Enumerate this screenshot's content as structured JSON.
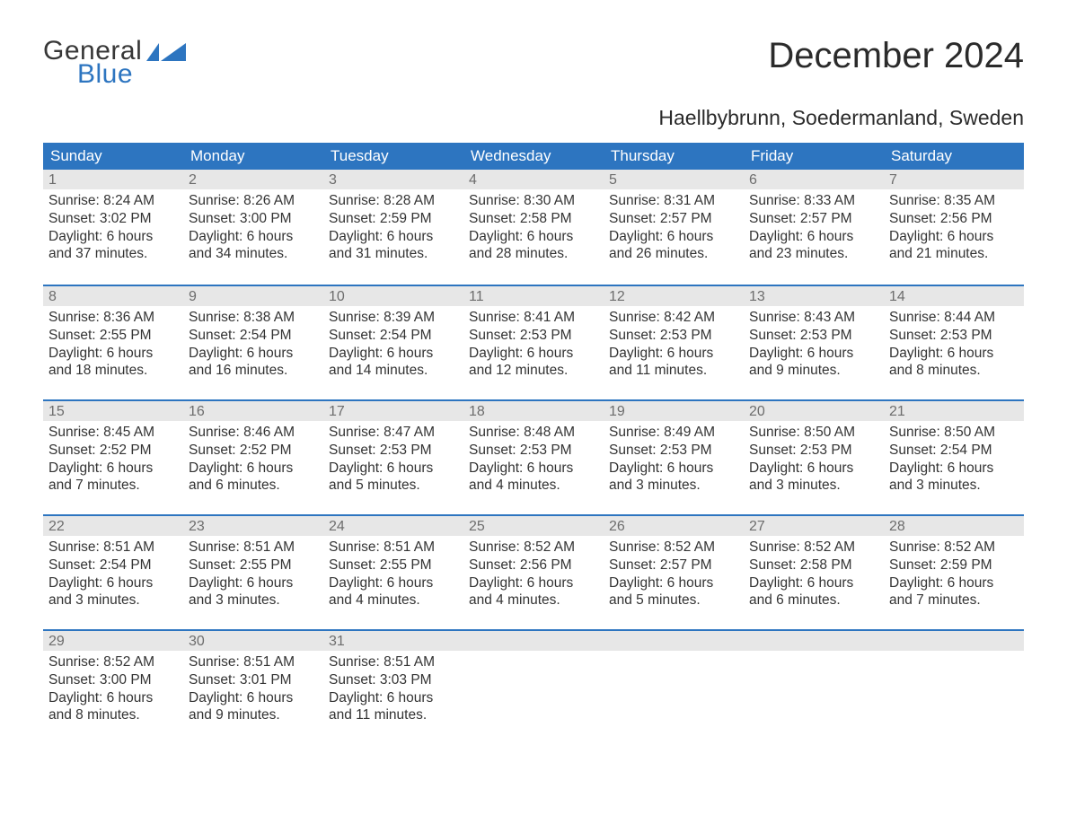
{
  "logo": {
    "general": "General",
    "blue": "Blue"
  },
  "title": "December 2024",
  "location": "Haellbybrunn, Soedermanland, Sweden",
  "colors": {
    "accent": "#2d75c0",
    "header_text": "#ffffff",
    "daynum_bg": "#e7e7e7",
    "daynum_fg": "#6d6d6d",
    "body_text": "#333333",
    "page_bg": "#ffffff",
    "title_fg": "#2b2b2b",
    "logo_dark": "#373737"
  },
  "columns": [
    "Sunday",
    "Monday",
    "Tuesday",
    "Wednesday",
    "Thursday",
    "Friday",
    "Saturday"
  ],
  "weeks": [
    [
      {
        "n": "1",
        "sr": "Sunrise: 8:24 AM",
        "ss": "Sunset: 3:02 PM",
        "d1": "Daylight: 6 hours",
        "d2": "and 37 minutes."
      },
      {
        "n": "2",
        "sr": "Sunrise: 8:26 AM",
        "ss": "Sunset: 3:00 PM",
        "d1": "Daylight: 6 hours",
        "d2": "and 34 minutes."
      },
      {
        "n": "3",
        "sr": "Sunrise: 8:28 AM",
        "ss": "Sunset: 2:59 PM",
        "d1": "Daylight: 6 hours",
        "d2": "and 31 minutes."
      },
      {
        "n": "4",
        "sr": "Sunrise: 8:30 AM",
        "ss": "Sunset: 2:58 PM",
        "d1": "Daylight: 6 hours",
        "d2": "and 28 minutes."
      },
      {
        "n": "5",
        "sr": "Sunrise: 8:31 AM",
        "ss": "Sunset: 2:57 PM",
        "d1": "Daylight: 6 hours",
        "d2": "and 26 minutes."
      },
      {
        "n": "6",
        "sr": "Sunrise: 8:33 AM",
        "ss": "Sunset: 2:57 PM",
        "d1": "Daylight: 6 hours",
        "d2": "and 23 minutes."
      },
      {
        "n": "7",
        "sr": "Sunrise: 8:35 AM",
        "ss": "Sunset: 2:56 PM",
        "d1": "Daylight: 6 hours",
        "d2": "and 21 minutes."
      }
    ],
    [
      {
        "n": "8",
        "sr": "Sunrise: 8:36 AM",
        "ss": "Sunset: 2:55 PM",
        "d1": "Daylight: 6 hours",
        "d2": "and 18 minutes."
      },
      {
        "n": "9",
        "sr": "Sunrise: 8:38 AM",
        "ss": "Sunset: 2:54 PM",
        "d1": "Daylight: 6 hours",
        "d2": "and 16 minutes."
      },
      {
        "n": "10",
        "sr": "Sunrise: 8:39 AM",
        "ss": "Sunset: 2:54 PM",
        "d1": "Daylight: 6 hours",
        "d2": "and 14 minutes."
      },
      {
        "n": "11",
        "sr": "Sunrise: 8:41 AM",
        "ss": "Sunset: 2:53 PM",
        "d1": "Daylight: 6 hours",
        "d2": "and 12 minutes."
      },
      {
        "n": "12",
        "sr": "Sunrise: 8:42 AM",
        "ss": "Sunset: 2:53 PM",
        "d1": "Daylight: 6 hours",
        "d2": "and 11 minutes."
      },
      {
        "n": "13",
        "sr": "Sunrise: 8:43 AM",
        "ss": "Sunset: 2:53 PM",
        "d1": "Daylight: 6 hours",
        "d2": "and 9 minutes."
      },
      {
        "n": "14",
        "sr": "Sunrise: 8:44 AM",
        "ss": "Sunset: 2:53 PM",
        "d1": "Daylight: 6 hours",
        "d2": "and 8 minutes."
      }
    ],
    [
      {
        "n": "15",
        "sr": "Sunrise: 8:45 AM",
        "ss": "Sunset: 2:52 PM",
        "d1": "Daylight: 6 hours",
        "d2": "and 7 minutes."
      },
      {
        "n": "16",
        "sr": "Sunrise: 8:46 AM",
        "ss": "Sunset: 2:52 PM",
        "d1": "Daylight: 6 hours",
        "d2": "and 6 minutes."
      },
      {
        "n": "17",
        "sr": "Sunrise: 8:47 AM",
        "ss": "Sunset: 2:53 PM",
        "d1": "Daylight: 6 hours",
        "d2": "and 5 minutes."
      },
      {
        "n": "18",
        "sr": "Sunrise: 8:48 AM",
        "ss": "Sunset: 2:53 PM",
        "d1": "Daylight: 6 hours",
        "d2": "and 4 minutes."
      },
      {
        "n": "19",
        "sr": "Sunrise: 8:49 AM",
        "ss": "Sunset: 2:53 PM",
        "d1": "Daylight: 6 hours",
        "d2": "and 3 minutes."
      },
      {
        "n": "20",
        "sr": "Sunrise: 8:50 AM",
        "ss": "Sunset: 2:53 PM",
        "d1": "Daylight: 6 hours",
        "d2": "and 3 minutes."
      },
      {
        "n": "21",
        "sr": "Sunrise: 8:50 AM",
        "ss": "Sunset: 2:54 PM",
        "d1": "Daylight: 6 hours",
        "d2": "and 3 minutes."
      }
    ],
    [
      {
        "n": "22",
        "sr": "Sunrise: 8:51 AM",
        "ss": "Sunset: 2:54 PM",
        "d1": "Daylight: 6 hours",
        "d2": "and 3 minutes."
      },
      {
        "n": "23",
        "sr": "Sunrise: 8:51 AM",
        "ss": "Sunset: 2:55 PM",
        "d1": "Daylight: 6 hours",
        "d2": "and 3 minutes."
      },
      {
        "n": "24",
        "sr": "Sunrise: 8:51 AM",
        "ss": "Sunset: 2:55 PM",
        "d1": "Daylight: 6 hours",
        "d2": "and 4 minutes."
      },
      {
        "n": "25",
        "sr": "Sunrise: 8:52 AM",
        "ss": "Sunset: 2:56 PM",
        "d1": "Daylight: 6 hours",
        "d2": "and 4 minutes."
      },
      {
        "n": "26",
        "sr": "Sunrise: 8:52 AM",
        "ss": "Sunset: 2:57 PM",
        "d1": "Daylight: 6 hours",
        "d2": "and 5 minutes."
      },
      {
        "n": "27",
        "sr": "Sunrise: 8:52 AM",
        "ss": "Sunset: 2:58 PM",
        "d1": "Daylight: 6 hours",
        "d2": "and 6 minutes."
      },
      {
        "n": "28",
        "sr": "Sunrise: 8:52 AM",
        "ss": "Sunset: 2:59 PM",
        "d1": "Daylight: 6 hours",
        "d2": "and 7 minutes."
      }
    ],
    [
      {
        "n": "29",
        "sr": "Sunrise: 8:52 AM",
        "ss": "Sunset: 3:00 PM",
        "d1": "Daylight: 6 hours",
        "d2": "and 8 minutes."
      },
      {
        "n": "30",
        "sr": "Sunrise: 8:51 AM",
        "ss": "Sunset: 3:01 PM",
        "d1": "Daylight: 6 hours",
        "d2": "and 9 minutes."
      },
      {
        "n": "31",
        "sr": "Sunrise: 8:51 AM",
        "ss": "Sunset: 3:03 PM",
        "d1": "Daylight: 6 hours",
        "d2": "and 11 minutes."
      },
      null,
      null,
      null,
      null
    ]
  ]
}
